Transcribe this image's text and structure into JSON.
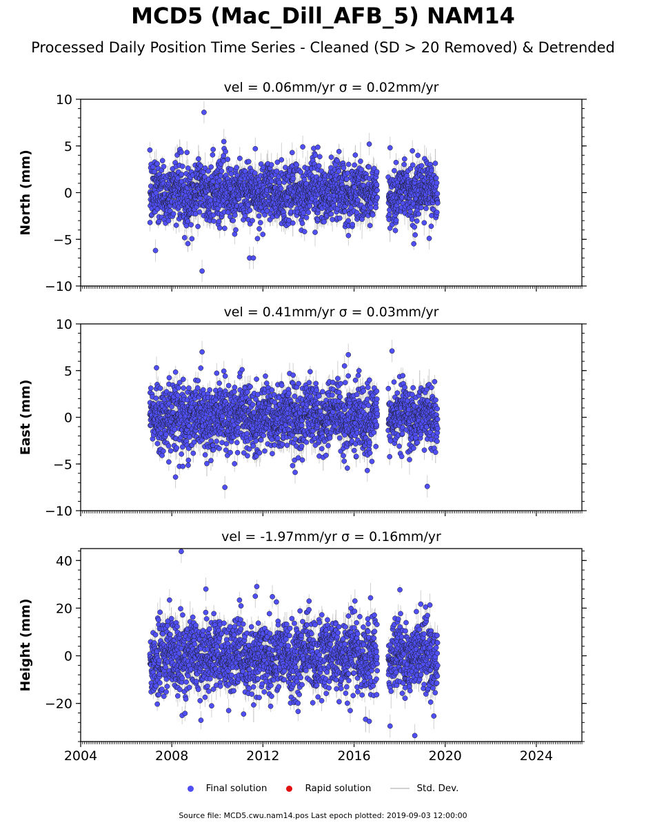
{
  "title": "MCD5 (Mac_Dill_AFB_5) NAM14",
  "subtitle": "Processed Daily Position Time Series - Cleaned (SD > 20 Removed) & Detrended",
  "legend": {
    "final": "Final solution",
    "rapid": "Rapid solution",
    "std": "Std. Dev."
  },
  "footer": "Source file: MCD5.cwu.nam14.pos  Last epoch plotted: 2019-09-03 12:00:00",
  "colors": {
    "final": "#4f4ff5",
    "rapid": "#e01010",
    "std": "#d0d0d0",
    "edge": "#1a1a1a"
  },
  "chart_data": [
    {
      "type": "scatter",
      "panel": "north",
      "title": "vel = 0.06mm/yr   σ = 0.02mm/yr",
      "ylabel": "North (mm)",
      "xlim": [
        "2004-01-01",
        "2026-01-01"
      ],
      "ylim": [
        -10,
        10
      ],
      "yticks": [
        "−10",
        "−5",
        "0",
        "5",
        "10"
      ],
      "xticks": [
        "2004",
        "2008",
        "2012",
        "2016",
        "2020",
        "2024"
      ],
      "show_xticklabels": false,
      "data_range": [
        "2007-01-15",
        "2019-09-03"
      ],
      "gap": [
        "2017-01-10",
        "2017-07-01"
      ],
      "typical_spread_sd": 1.6,
      "outliers": [
        {
          "x": "2009-06-01",
          "y": 8.6
        },
        {
          "x": "2009-05-01",
          "y": -8.4
        },
        {
          "x": "2007-04-15",
          "y": -6.2
        },
        {
          "x": "2011-06-01",
          "y": -7.0
        },
        {
          "x": "2011-08-01",
          "y": -7.0
        },
        {
          "x": "2011-09-01",
          "y": 4.7
        },
        {
          "x": "2013-10-01",
          "y": 4.9
        },
        {
          "x": "2016-09-01",
          "y": 5.2
        },
        {
          "x": "2017-08-01",
          "y": 4.8
        },
        {
          "x": "2008-09-01",
          "y": 4.3
        },
        {
          "x": "2019-04-20",
          "y": -4.9
        }
      ],
      "series": [
        {
          "name": "Final solution",
          "color": "#4f4ff5"
        }
      ]
    },
    {
      "type": "scatter",
      "panel": "east",
      "title": "vel = 0.41mm/yr   σ = 0.03mm/yr",
      "ylabel": "East (mm)",
      "xlim": [
        "2004-01-01",
        "2026-01-01"
      ],
      "ylim": [
        -10,
        10
      ],
      "yticks": [
        "−10",
        "−5",
        "0",
        "5",
        "10"
      ],
      "xticks": [
        "2004",
        "2008",
        "2012",
        "2016",
        "2020",
        "2024"
      ],
      "show_xticklabels": false,
      "data_range": [
        "2007-01-15",
        "2019-09-03"
      ],
      "gap": [
        "2017-01-10",
        "2017-07-01"
      ],
      "typical_spread_sd": 1.7,
      "outliers": [
        {
          "x": "2009-05-01",
          "y": 7.0
        },
        {
          "x": "2017-09-01",
          "y": 7.1
        },
        {
          "x": "2015-10-01",
          "y": 6.7
        },
        {
          "x": "2015-08-01",
          "y": 5.5
        },
        {
          "x": "2007-05-01",
          "y": 5.3
        },
        {
          "x": "2010-05-01",
          "y": -7.5
        },
        {
          "x": "2008-03-01",
          "y": -6.4
        },
        {
          "x": "2013-06-01",
          "y": -5.9
        },
        {
          "x": "2016-08-01",
          "y": -5.7
        },
        {
          "x": "2019-03-20",
          "y": -7.4
        },
        {
          "x": "2011-02-01",
          "y": 5.1
        }
      ],
      "series": [
        {
          "name": "Final solution",
          "color": "#4f4ff5"
        }
      ]
    },
    {
      "type": "scatter",
      "panel": "height",
      "title": "vel = -1.97mm/yr   σ = 0.16mm/yr",
      "ylabel": "Height (mm)",
      "xlim": [
        "2004-01-01",
        "2026-01-01"
      ],
      "ylim": [
        -36,
        45
      ],
      "yticks": [
        "−20",
        "0",
        "20",
        "40"
      ],
      "ytick_values": [
        -20,
        0,
        20,
        40
      ],
      "xticks": [
        "2004",
        "2008",
        "2012",
        "2016",
        "2020",
        "2024"
      ],
      "show_xticklabels": true,
      "data_range": [
        "2007-01-15",
        "2019-09-03"
      ],
      "gap": [
        "2017-01-10",
        "2017-07-01"
      ],
      "typical_spread_sd": 7.5,
      "outliers": [
        {
          "x": "2008-06-01",
          "y": 43.8
        },
        {
          "x": "2009-07-01",
          "y": 28.0
        },
        {
          "x": "2016-01-15",
          "y": 23.0
        },
        {
          "x": "2011-09-01",
          "y": 25.0
        },
        {
          "x": "2012-06-01",
          "y": 24.8
        },
        {
          "x": "2017-08-01",
          "y": -29.5
        },
        {
          "x": "2018-09-01",
          "y": -33.5
        },
        {
          "x": "2016-09-01",
          "y": -27.5
        },
        {
          "x": "2015-11-01",
          "y": -23.0
        },
        {
          "x": "2009-10-01",
          "y": -21.0
        },
        {
          "x": "2010-07-01",
          "y": -23.0
        },
        {
          "x": "2019-05-01",
          "y": 21.3
        }
      ],
      "series": [
        {
          "name": "Final solution",
          "color": "#4f4ff5"
        }
      ]
    }
  ]
}
